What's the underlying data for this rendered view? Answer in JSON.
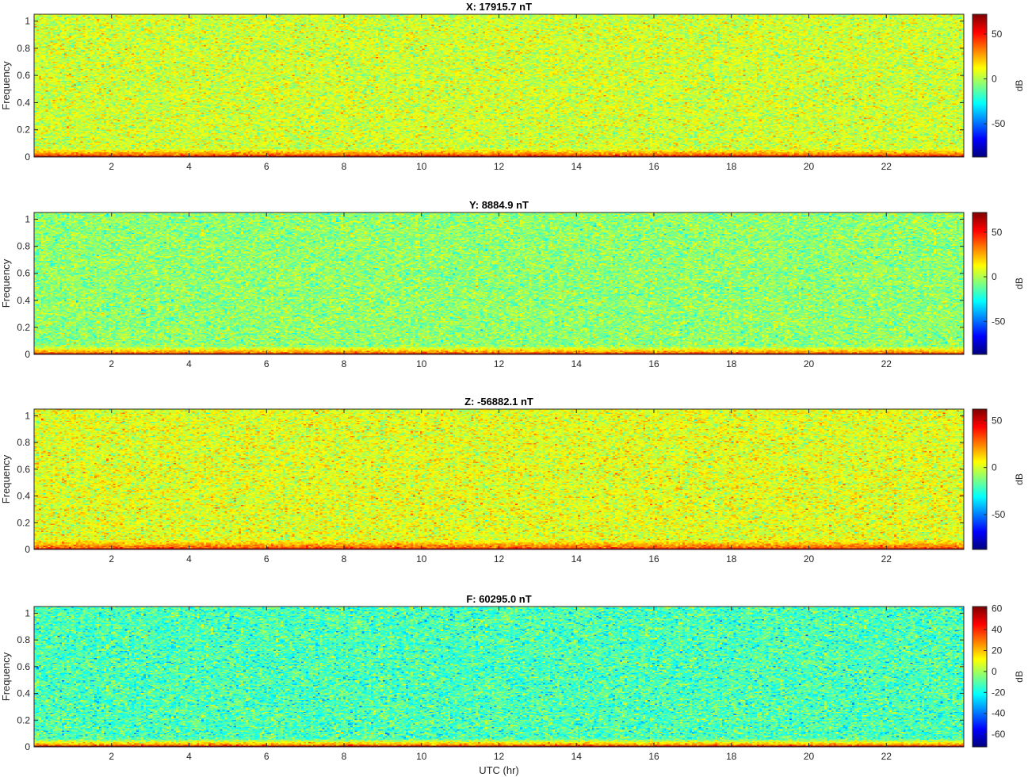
{
  "chart_data": [
    {
      "type": "heatmap",
      "title": "X: 17915.7 nT",
      "xlabel": "",
      "ylabel": "Frequency",
      "xlim": [
        0,
        24
      ],
      "ylim": [
        0,
        1.05
      ],
      "xticks": [
        2,
        4,
        6,
        8,
        10,
        12,
        14,
        16,
        18,
        20,
        22
      ],
      "yticks": [
        0,
        0.2,
        0.4,
        0.6,
        0.8,
        1
      ],
      "colorbar": {
        "label": "dB",
        "range": [
          -87,
          72
        ],
        "ticks": [
          -50,
          0,
          50
        ]
      },
      "background_level_db": 5,
      "band": {
        "edge_db": 38,
        "strong_db": 68,
        "upper_frequency": 0.06
      }
    },
    {
      "type": "heatmap",
      "title": "Y: 8884.9 nT",
      "xlabel": "",
      "ylabel": "Frequency",
      "xlim": [
        0,
        24
      ],
      "ylim": [
        0,
        1.05
      ],
      "xticks": [
        2,
        4,
        6,
        8,
        10,
        12,
        14,
        16,
        18,
        20,
        22
      ],
      "yticks": [
        0,
        0.2,
        0.4,
        0.6,
        0.8,
        1
      ],
      "colorbar": {
        "label": "dB",
        "range": [
          -87,
          72
        ],
        "ticks": [
          -50,
          0,
          50
        ]
      },
      "background_level_db": -5,
      "band": {
        "edge_db": 32,
        "strong_db": 68,
        "upper_frequency": 0.06
      }
    },
    {
      "type": "heatmap",
      "title": "Z: -56882.1 nT",
      "xlabel": "",
      "ylabel": "Frequency",
      "xlim": [
        0,
        24
      ],
      "ylim": [
        0,
        1.05
      ],
      "xticks": [
        2,
        4,
        6,
        8,
        10,
        12,
        14,
        16,
        18,
        20,
        22
      ],
      "yticks": [
        0,
        0.2,
        0.4,
        0.6,
        0.8,
        1
      ],
      "colorbar": {
        "label": "dB",
        "range": [
          -87,
          62
        ],
        "ticks": [
          -50,
          0,
          50
        ]
      },
      "background_level_db": 2,
      "band": {
        "edge_db": 30,
        "strong_db": 58,
        "upper_frequency": 0.07
      }
    },
    {
      "type": "heatmap",
      "title": "F: 60295.0 nT",
      "xlabel": "UTC (hr)",
      "ylabel": "Frequency",
      "xlim": [
        0,
        24
      ],
      "ylim": [
        0,
        1.05
      ],
      "xticks": [
        2,
        4,
        6,
        8,
        10,
        12,
        14,
        16,
        18,
        20,
        22
      ],
      "yticks": [
        0,
        0.2,
        0.4,
        0.6,
        0.8,
        1
      ],
      "colorbar": {
        "label": "dB",
        "range": [
          -72,
          62
        ],
        "ticks": [
          -60,
          -40,
          -20,
          0,
          20,
          40,
          60
        ]
      },
      "background_level_db": -12,
      "band": {
        "edge_db": 28,
        "strong_db": 58,
        "upper_frequency": 0.06
      }
    }
  ]
}
